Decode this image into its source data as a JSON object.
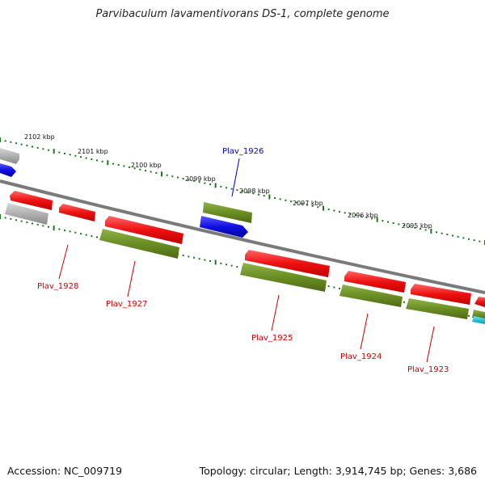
{
  "title": "Parvibaculum lavamentivorans DS-1, complete genome",
  "footer": {
    "accession": "Accession: NC_009719",
    "summary": "Topology: circular; Length: 3,914,745 bp; Genes: 3,686"
  },
  "colors": {
    "backbone": "#7a7a7a",
    "tick": "#1a7a1a",
    "gene_red": "#ee1111",
    "gene_olive": "#6b8e23",
    "gene_blue": "#1010e0",
    "gene_gray": "#b0b0b0",
    "gene_cyan": "#22c8d8",
    "label_red": "#cc0000",
    "label_blue": "#0000cc"
  },
  "scale_labels": [
    "2102 kbp",
    "2101 kbp",
    "2100 kbp",
    "2099 kbp",
    "2098 kbp",
    "2097 kbp",
    "2096 kbp",
    "2095 kbp"
  ],
  "gene_labels": [
    {
      "text": "Plav_1926",
      "color": "blue"
    },
    {
      "text": "Plav_1928",
      "color": "red"
    },
    {
      "text": "Plav_1927",
      "color": "red"
    },
    {
      "text": "Plav_1925",
      "color": "red"
    },
    {
      "text": "Plav_1924",
      "color": "red"
    },
    {
      "text": "Plav_1923",
      "color": "red"
    }
  ]
}
